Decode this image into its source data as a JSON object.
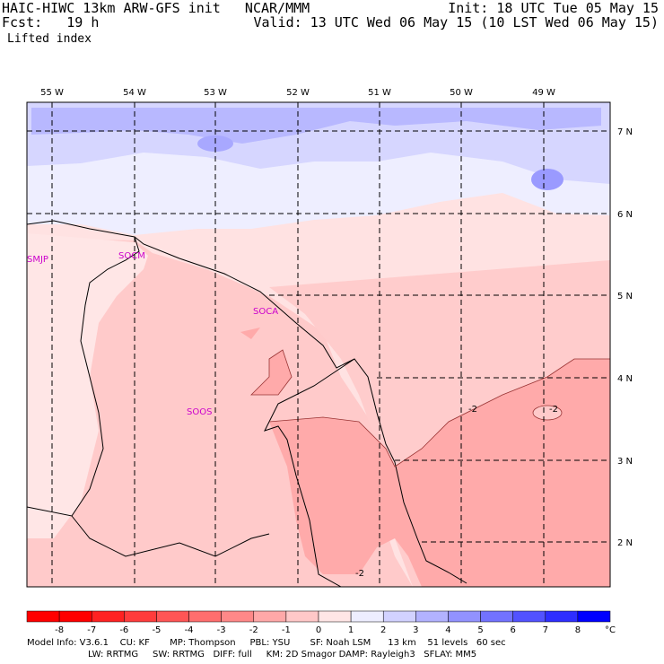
{
  "header": {
    "left_line1": "HAIC-HIWC 13km ARW-GFS init   NCAR/MMM",
    "left_line2": "Fcst:   19 h",
    "right_line1": "Init: 18 UTC Tue 05 May 15",
    "right_line2": "Valid: 13 UTC Wed 06 May 15 (10 LST Wed 06 May 15)",
    "field_name": "Lifted index"
  },
  "map": {
    "lon_labels": [
      "55 W",
      "54 W",
      "53 W",
      "52 W",
      "51 W",
      "50 W",
      "49 W"
    ],
    "lat_labels": [
      "7 N",
      "6 N",
      "5 N",
      "4 N",
      "3 N",
      "2 N"
    ],
    "stations": [
      "SMJP",
      "SOCM",
      "SOCA",
      "SOOS"
    ],
    "contour_labels": [
      "-2",
      "-2",
      "-2"
    ]
  },
  "colorbar": {
    "labels": [
      "-8",
      "-7",
      "-6",
      "-5",
      "-4",
      "-3",
      "-2",
      "-1",
      "0",
      "1",
      "2",
      "3",
      "4",
      "5",
      "6",
      "7",
      "8"
    ],
    "unit": "°C",
    "colors": [
      "#ff0000",
      "#ff2222",
      "#ff3c3c",
      "#ff5555",
      "#ff6e6e",
      "#ff8888",
      "#ffa8a8",
      "#ffc8c8",
      "#ffe6e6",
      "#eeeeff",
      "#d2d2ff",
      "#b2b2ff",
      "#9292ff",
      "#7272ff",
      "#5252ff",
      "#2e2eff",
      "#0000ff"
    ]
  },
  "footer": {
    "line1": "Model Info: V3.6.1    CU: KF       MP: Thompson     PBL: YSU       SF: Noah LSM      13 km    51 levels   60 sec",
    "line2": "LW: RRTMG     SW: RRTMG   DIFF: full     KM: 2D Smagor DAMP: Rayleigh3   SFLAY: MM5"
  }
}
